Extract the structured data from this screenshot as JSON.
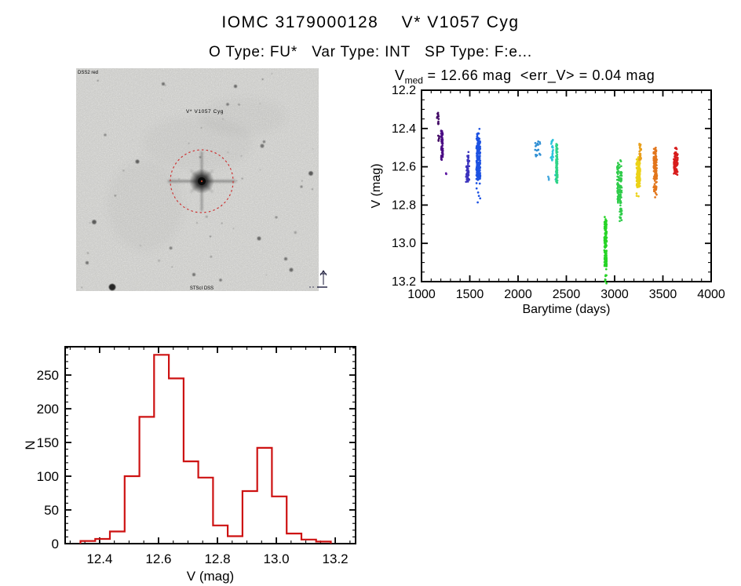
{
  "header": {
    "title": "IOMC 3179000128    V* V1057 Cyg",
    "subtitle": "O Type: FU*   Var Type: INT   SP Type: F:e..."
  },
  "stats": {
    "v_prefix": "V",
    "v_subscript": "med",
    "v_rest": " = 12.66 mag  <err_V> = 0.04 mag"
  },
  "finder_chart": {
    "survey_label": "DSS2 red",
    "target_label": "V* V1057 Cyg",
    "credit_label": "STScI DSS",
    "marker_color": "#cc2525",
    "background": "#f2f2ef"
  },
  "chart_data": [
    {
      "type": "scatter",
      "title": "Vmed = 12.66 mag <err_V> = 0.04 mag",
      "xlabel": "Barytime (days)",
      "ylabel": "V (mag)",
      "xlim": [
        1000,
        4000
      ],
      "ylim": [
        12.2,
        13.2
      ],
      "y_inverted": true,
      "xticks": [
        1000,
        1500,
        2000,
        2500,
        3000,
        3500,
        4000
      ],
      "yticks": [
        "12.2",
        "12.4",
        "12.6",
        "12.8",
        "13.0",
        "13.2"
      ],
      "x_minor_step": 100,
      "y_minor_step": 0.05,
      "clusters": [
        {
          "t": [
            1160,
            1180
          ],
          "v": [
            12.315,
            12.385
          ],
          "n": 12,
          "color": "#430a66"
        },
        {
          "t": [
            1172,
            1184
          ],
          "v": [
            12.425,
            12.465
          ],
          "n": 6,
          "color": "#430a66"
        },
        {
          "t": [
            1203,
            1221
          ],
          "v": [
            12.405,
            12.565
          ],
          "n": 55,
          "color": "#4b0d85"
        },
        {
          "t": [
            1250,
            1260
          ],
          "v": [
            12.62,
            12.64
          ],
          "n": 2,
          "color": "#5a14a0"
        },
        {
          "t": [
            1460,
            1495
          ],
          "v": [
            12.49,
            12.685
          ],
          "n": 55,
          "color": "#3c33bd",
          "core": [
            12.54,
            12.68
          ]
        },
        {
          "t": [
            1568,
            1608
          ],
          "v": [
            12.4,
            12.8
          ],
          "n": 170,
          "color": "#1d52e2",
          "core": [
            12.44,
            12.67
          ]
        },
        {
          "t": [
            2176,
            2232
          ],
          "v": [
            12.465,
            12.55
          ],
          "n": 18,
          "color": "#2f8fd4"
        },
        {
          "t": [
            2310,
            2322
          ],
          "v": [
            12.645,
            12.675
          ],
          "n": 3,
          "color": "#45a8de"
        },
        {
          "t": [
            2338,
            2364
          ],
          "v": [
            12.455,
            12.575
          ],
          "n": 22,
          "color": "#2cc3dc"
        },
        {
          "t": [
            2386,
            2404
          ],
          "v": [
            12.63,
            12.685
          ],
          "n": 5,
          "color": "#2cc3dc"
        },
        {
          "t": [
            2394,
            2408
          ],
          "v": [
            12.475,
            12.685
          ],
          "n": 80,
          "color": "#2dd387"
        },
        {
          "t": [
            2894,
            2918
          ],
          "v": [
            12.862,
            13.215
          ],
          "n": 160,
          "color": "#27d427",
          "core": [
            12.88,
            13.12
          ]
        },
        {
          "t": [
            3026,
            3044
          ],
          "v": [
            12.595,
            12.79
          ],
          "n": 65,
          "color": "#2fcc4a"
        },
        {
          "t": [
            3052,
            3074
          ],
          "v": [
            12.615,
            12.885
          ],
          "n": 65,
          "color": "#2fcc4a"
        },
        {
          "t": [
            3028,
            3072
          ],
          "v": [
            12.565,
            12.605
          ],
          "n": 10,
          "color": "#2fcc4a"
        },
        {
          "t": [
            3226,
            3264
          ],
          "v": [
            12.545,
            12.755
          ],
          "n": 140,
          "color": "#ecd217",
          "core": [
            12.55,
            12.71
          ]
        },
        {
          "t": [
            3256,
            3274
          ],
          "v": [
            12.475,
            12.565
          ],
          "n": 30,
          "color": "#e9a01d"
        },
        {
          "t": [
            3404,
            3438
          ],
          "v": [
            12.48,
            12.775
          ],
          "n": 120,
          "color": "#e2761c",
          "core": [
            12.5,
            12.73
          ]
        },
        {
          "t": [
            3613,
            3654
          ],
          "v": [
            12.485,
            12.66
          ],
          "n": 85,
          "color": "#d81d1d",
          "core": [
            12.52,
            12.645
          ]
        }
      ]
    },
    {
      "type": "bar",
      "xlabel": "V (mag)",
      "ylabel": "N",
      "bin_start": 12.335,
      "bin_width": 0.05,
      "values": [
        4,
        7,
        18,
        100,
        188,
        280,
        245,
        122,
        98,
        27,
        11,
        78,
        142,
        70,
        15,
        6,
        3
      ],
      "xlim": [
        12.283,
        13.269
      ],
      "ylim": [
        0,
        292
      ],
      "xticks": [
        "12.4",
        "12.6",
        "12.8",
        "13.0",
        "13.2"
      ],
      "yticks": [
        0,
        50,
        100,
        150,
        200,
        250
      ],
      "x_minor_step": 0.05,
      "y_minor_step": 10,
      "line_color": "#cd1212"
    }
  ]
}
